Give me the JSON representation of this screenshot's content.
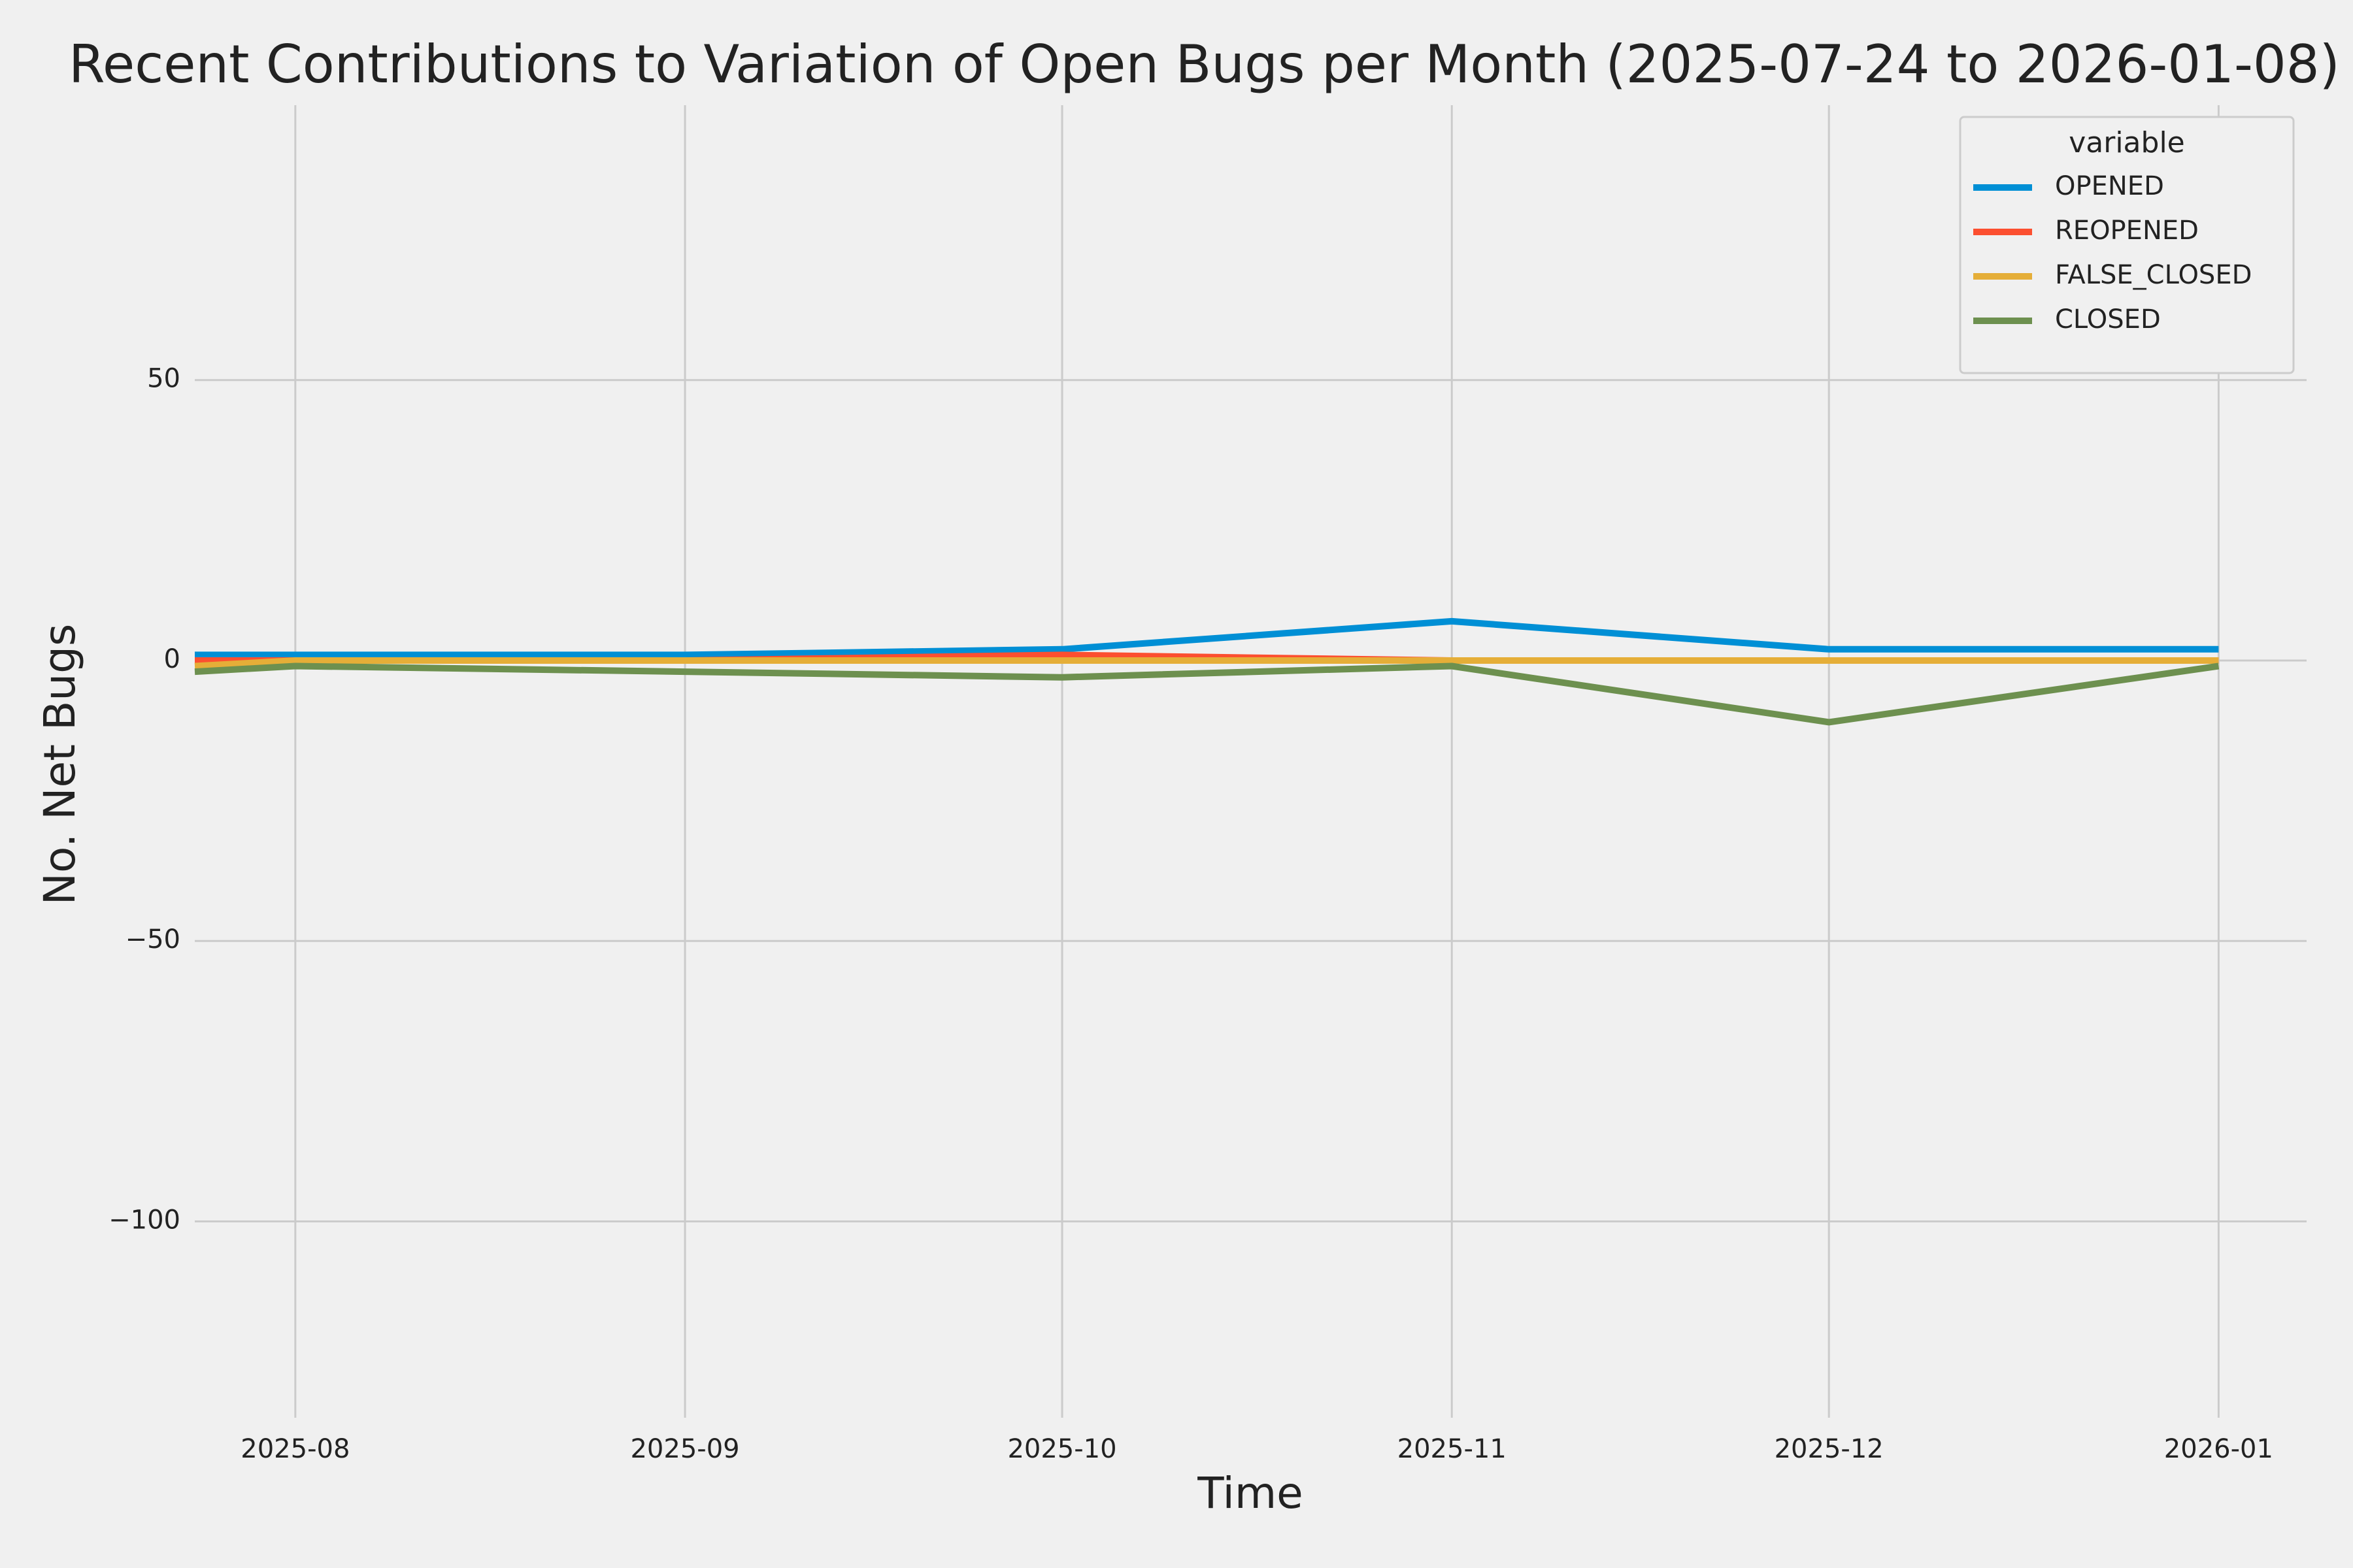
{
  "chart_data": {
    "type": "line",
    "title": "Recent Contributions to Variation of Open Bugs per Month (2025-07-24 to 2026-01-08)",
    "x_label": "Time",
    "y_label": "No. Net Bugs",
    "x": [
      "2025-07-24",
      "2025-08",
      "2025-09",
      "2025-10",
      "2025-11",
      "2025-12",
      "2026-01"
    ],
    "series": [
      {
        "name": "OPENED",
        "color": "#008fd5",
        "values": [
          1,
          1,
          1,
          2,
          7,
          2,
          2
        ]
      },
      {
        "name": "REOPENED",
        "color": "#fc4f30",
        "values": [
          0,
          0,
          0,
          1,
          0,
          0,
          0
        ]
      },
      {
        "name": "FALSE_CLOSED",
        "color": "#e5ae38",
        "values": [
          -1,
          0,
          0,
          0,
          0,
          0,
          0
        ]
      },
      {
        "name": "CLOSED",
        "color": "#6d904f",
        "values": [
          -2,
          -1,
          -2,
          -3,
          -1,
          -11,
          -1
        ]
      }
    ],
    "xlim": [
      "2025-07-24",
      "2026-01-08"
    ],
    "xticks": [
      "2025-08",
      "2025-09",
      "2025-10",
      "2025-11",
      "2025-12",
      "2026-01"
    ],
    "ylim": [
      -135,
      99
    ],
    "yticks": [
      {
        "value": -100,
        "label": "−100"
      },
      {
        "value": -50,
        "label": "−50"
      },
      0,
      50
    ],
    "grid": true,
    "legend": "upper right",
    "legend_title": "variable"
  }
}
